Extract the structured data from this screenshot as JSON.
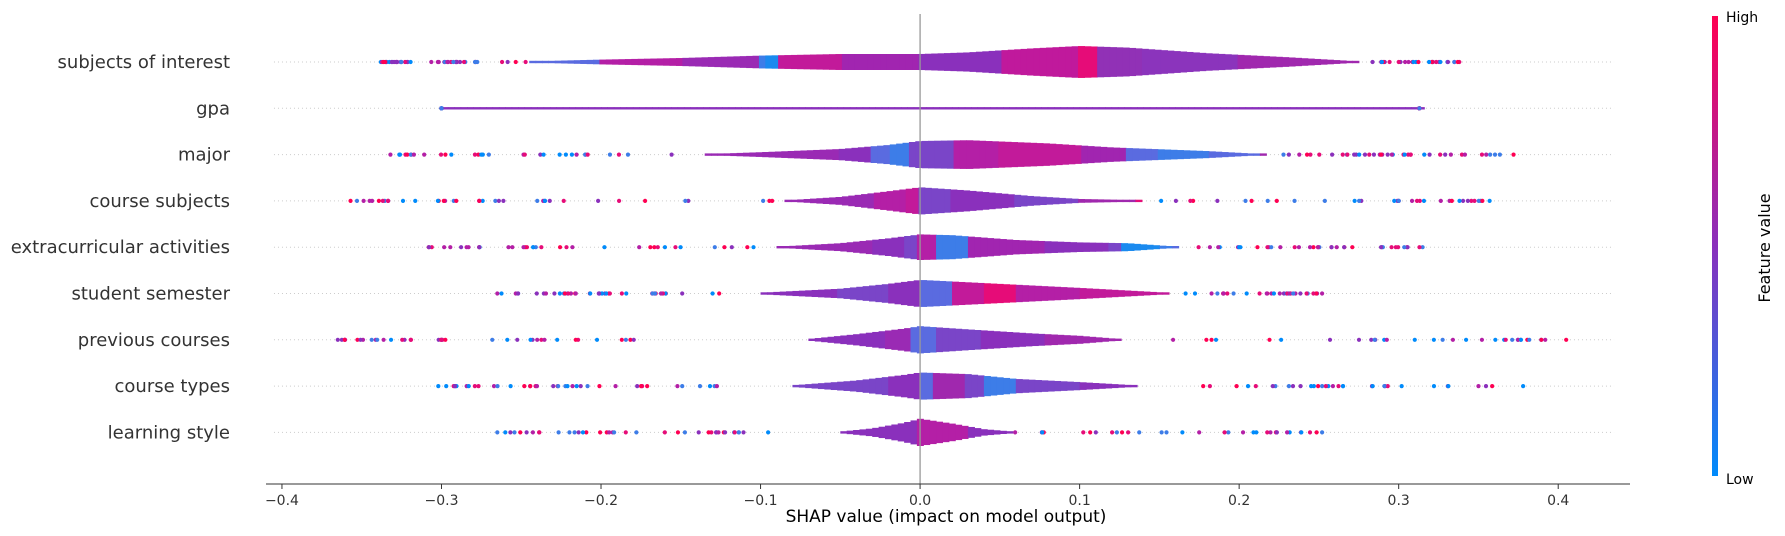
{
  "chart_data": {
    "type": "violin",
    "xlabel": "SHAP value (impact on model output)",
    "xlim": [
      -0.41,
      0.445
    ],
    "xticks": [
      -0.4,
      -0.3,
      -0.2,
      -0.1,
      0.0,
      0.1,
      0.2,
      0.3,
      0.4
    ],
    "xtick_labels": [
      "−0.4",
      "−0.3",
      "−0.2",
      "−0.1",
      "0.0",
      "0.1",
      "0.2",
      "0.3",
      "0.4"
    ],
    "colorbar": {
      "title": "Feature value",
      "high_label": "High",
      "low_label": "Low",
      "low_color": "#008bfb",
      "high_color": "#ff0052"
    },
    "features": [
      {
        "name": "subjects of interest",
        "min": -0.338,
        "max": 0.338,
        "violin_range": [
          -0.245,
          0.275
        ],
        "density": [
          [
            -0.245,
            0.04
          ],
          [
            -0.2,
            0.15
          ],
          [
            -0.15,
            0.25
          ],
          [
            -0.1,
            0.4
          ],
          [
            -0.05,
            0.5
          ],
          [
            0.0,
            0.5
          ],
          [
            0.03,
            0.6
          ],
          [
            0.07,
            0.85
          ],
          [
            0.1,
            1.0
          ],
          [
            0.13,
            0.9
          ],
          [
            0.18,
            0.55
          ],
          [
            0.23,
            0.3
          ],
          [
            0.275,
            0.04
          ]
        ],
        "colors": [
          [
            -0.245,
            "#5a6be0"
          ],
          [
            -0.2,
            "#b41fa6"
          ],
          [
            -0.15,
            "#9a2ab4"
          ],
          [
            -0.1,
            "#3d7de8"
          ],
          [
            -0.095,
            "#1a8aef"
          ],
          [
            -0.09,
            "#c21a9a"
          ],
          [
            -0.05,
            "#a125b0"
          ],
          [
            0.0,
            "#8a30bc"
          ],
          [
            0.05,
            "#c0199c"
          ],
          [
            0.1,
            "#e60c78"
          ],
          [
            0.11,
            "#9131b6"
          ],
          [
            0.14,
            "#8b34bc"
          ],
          [
            0.2,
            "#a028ae"
          ],
          [
            0.275,
            "#8a30bc"
          ]
        ]
      },
      {
        "name": "gpa",
        "min": -0.3,
        "max": 0.313,
        "violin_range": [
          -0.3,
          0.313
        ],
        "density": [
          [
            -0.3,
            0.015
          ],
          [
            0.0,
            0.02
          ],
          [
            0.313,
            0.015
          ]
        ],
        "colors": [
          [
            -0.3,
            "#8a30bc"
          ],
          [
            0.313,
            "#8a30bc"
          ]
        ]
      },
      {
        "name": "major",
        "min": -0.332,
        "max": 0.372,
        "violin_range": [
          -0.135,
          0.215
        ],
        "density": [
          [
            -0.135,
            0.03
          ],
          [
            -0.1,
            0.15
          ],
          [
            -0.05,
            0.35
          ],
          [
            -0.02,
            0.6
          ],
          [
            0.0,
            0.85
          ],
          [
            0.03,
            0.9
          ],
          [
            0.08,
            0.7
          ],
          [
            0.12,
            0.45
          ],
          [
            0.18,
            0.22
          ],
          [
            0.215,
            0.03
          ]
        ],
        "colors": [
          [
            -0.135,
            "#9a2ab4"
          ],
          [
            -0.05,
            "#8a30bc"
          ],
          [
            -0.03,
            "#5a6be0"
          ],
          [
            -0.02,
            "#3d7de8"
          ],
          [
            -0.005,
            "#7a45c8"
          ],
          [
            0.02,
            "#b41fa6"
          ],
          [
            0.05,
            "#c21a9a"
          ],
          [
            0.1,
            "#a125b0"
          ],
          [
            0.13,
            "#5a6be0"
          ],
          [
            0.15,
            "#3d7de8"
          ],
          [
            0.18,
            "#5a6be0"
          ],
          [
            0.215,
            "#a028ae"
          ]
        ]
      },
      {
        "name": "course subjects",
        "min": -0.357,
        "max": 0.357,
        "violin_range": [
          -0.085,
          0.137
        ],
        "density": [
          [
            -0.085,
            0.03
          ],
          [
            -0.05,
            0.25
          ],
          [
            -0.02,
            0.6
          ],
          [
            0.0,
            0.85
          ],
          [
            0.03,
            0.65
          ],
          [
            0.07,
            0.3
          ],
          [
            0.1,
            0.12
          ],
          [
            0.137,
            0.05
          ]
        ],
        "colors": [
          [
            -0.085,
            "#9a2ab4"
          ],
          [
            -0.03,
            "#b41fa6"
          ],
          [
            -0.01,
            "#c21a9a"
          ],
          [
            0.0,
            "#7a45c8"
          ],
          [
            0.02,
            "#8a30bc"
          ],
          [
            0.06,
            "#7a45c8"
          ],
          [
            0.1,
            "#a028ae"
          ],
          [
            0.137,
            "#e60c78"
          ]
        ]
      },
      {
        "name": "extracurricular activities",
        "min": -0.308,
        "max": 0.315,
        "violin_range": [
          -0.09,
          0.16
        ],
        "density": [
          [
            -0.09,
            0.03
          ],
          [
            -0.05,
            0.25
          ],
          [
            -0.02,
            0.55
          ],
          [
            0.0,
            0.8
          ],
          [
            0.02,
            0.75
          ],
          [
            0.06,
            0.45
          ],
          [
            0.1,
            0.3
          ],
          [
            0.13,
            0.25
          ],
          [
            0.16,
            0.04
          ]
        ],
        "colors": [
          [
            -0.09,
            "#9a2ab4"
          ],
          [
            -0.03,
            "#8a30bc"
          ],
          [
            -0.01,
            "#7a45c8"
          ],
          [
            0.0,
            "#b41fa6"
          ],
          [
            0.01,
            "#3d7de8"
          ],
          [
            0.03,
            "#a125b0"
          ],
          [
            0.08,
            "#8a30bc"
          ],
          [
            0.12,
            "#7a45c8"
          ],
          [
            0.125,
            "#1a8aef"
          ],
          [
            0.15,
            "#3d7de8"
          ],
          [
            0.16,
            "#5a6be0"
          ]
        ]
      },
      {
        "name": "student semester",
        "min": -0.265,
        "max": 0.252,
        "violin_range": [
          -0.1,
          0.155
        ],
        "density": [
          [
            -0.1,
            0.05
          ],
          [
            -0.05,
            0.3
          ],
          [
            -0.02,
            0.6
          ],
          [
            0.0,
            0.85
          ],
          [
            0.03,
            0.7
          ],
          [
            0.07,
            0.5
          ],
          [
            0.1,
            0.35
          ],
          [
            0.155,
            0.05
          ]
        ],
        "colors": [
          [
            -0.1,
            "#8a30bc"
          ],
          [
            -0.05,
            "#7a45c8"
          ],
          [
            -0.02,
            "#8a30bc"
          ],
          [
            0.0,
            "#5a6be0"
          ],
          [
            0.02,
            "#c21a9a"
          ],
          [
            0.04,
            "#e60c78"
          ],
          [
            0.06,
            "#b41fa6"
          ],
          [
            0.1,
            "#c21a9a"
          ],
          [
            0.155,
            "#e60c78"
          ]
        ]
      },
      {
        "name": "previous courses",
        "min": -0.365,
        "max": 0.405,
        "violin_range": [
          -0.07,
          0.125
        ],
        "density": [
          [
            -0.07,
            0.05
          ],
          [
            -0.04,
            0.35
          ],
          [
            -0.01,
            0.7
          ],
          [
            0.0,
            0.85
          ],
          [
            0.03,
            0.65
          ],
          [
            0.07,
            0.4
          ],
          [
            0.1,
            0.25
          ],
          [
            0.125,
            0.05
          ]
        ],
        "colors": [
          [
            -0.07,
            "#8a30bc"
          ],
          [
            -0.02,
            "#9a2ab4"
          ],
          [
            -0.005,
            "#5a6be0"
          ],
          [
            0.01,
            "#7a45c8"
          ],
          [
            0.04,
            "#8a30bc"
          ],
          [
            0.08,
            "#a028ae"
          ],
          [
            0.125,
            "#8a30bc"
          ]
        ]
      },
      {
        "name": "course types",
        "min": -0.302,
        "max": 0.378,
        "violin_range": [
          -0.08,
          0.135
        ],
        "density": [
          [
            -0.08,
            0.05
          ],
          [
            -0.04,
            0.35
          ],
          [
            -0.01,
            0.7
          ],
          [
            0.0,
            0.85
          ],
          [
            0.03,
            0.75
          ],
          [
            0.06,
            0.45
          ],
          [
            0.1,
            0.25
          ],
          [
            0.135,
            0.05
          ]
        ],
        "colors": [
          [
            -0.08,
            "#7a45c8"
          ],
          [
            -0.02,
            "#8a30bc"
          ],
          [
            0.0,
            "#5a6be0"
          ],
          [
            0.01,
            "#a028ae"
          ],
          [
            0.03,
            "#7a45c8"
          ],
          [
            0.04,
            "#3d7de8"
          ],
          [
            0.06,
            "#7a45c8"
          ],
          [
            0.1,
            "#8a30bc"
          ],
          [
            0.135,
            "#7a45c8"
          ]
        ]
      },
      {
        "name": "learning style",
        "min": -0.265,
        "max": 0.252,
        "violin_range": [
          -0.05,
          0.058
        ],
        "density": [
          [
            -0.05,
            0.05
          ],
          [
            -0.03,
            0.25
          ],
          [
            -0.01,
            0.6
          ],
          [
            0.0,
            0.85
          ],
          [
            0.02,
            0.55
          ],
          [
            0.04,
            0.2
          ],
          [
            0.058,
            0.05
          ]
        ],
        "colors": [
          [
            -0.05,
            "#8a30bc"
          ],
          [
            0.0,
            "#b41fa6"
          ],
          [
            0.03,
            "#8a30bc"
          ],
          [
            0.058,
            "#7a45c8"
          ]
        ]
      }
    ]
  }
}
